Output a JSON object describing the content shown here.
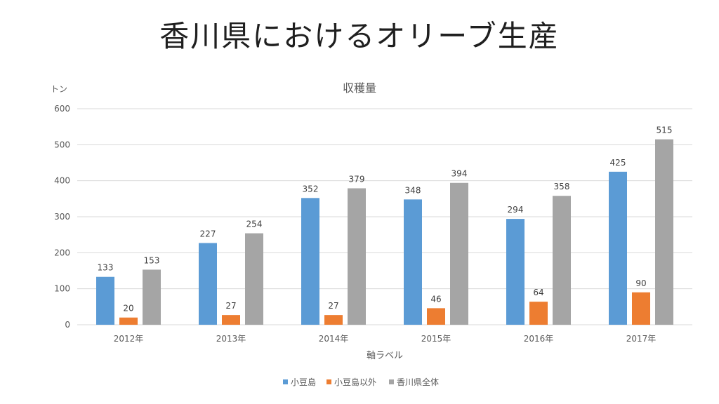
{
  "slide": {
    "title": "香川県におけるオリーブ生産"
  },
  "chart_data": {
    "type": "bar",
    "title": "収穫量",
    "ylabel": "トン",
    "xlabel": "軸ラベル",
    "categories": [
      "2012年",
      "2013年",
      "2014年",
      "2015年",
      "2016年",
      "2017年"
    ],
    "ylim": [
      0,
      600
    ],
    "yticks": [
      0,
      100,
      200,
      300,
      400,
      500,
      600
    ],
    "grid": true,
    "legend_position": "bottom",
    "series": [
      {
        "name": "小豆島",
        "color": "#5b9bd5",
        "values": [
          133,
          227,
          352,
          348,
          294,
          425
        ]
      },
      {
        "name": "小豆島以外",
        "color": "#ed7d31",
        "values": [
          20,
          27,
          27,
          46,
          64,
          90
        ]
      },
      {
        "name": "香川県全体",
        "color": "#a5a5a5",
        "values": [
          153,
          254,
          379,
          394,
          358,
          515
        ]
      }
    ]
  }
}
